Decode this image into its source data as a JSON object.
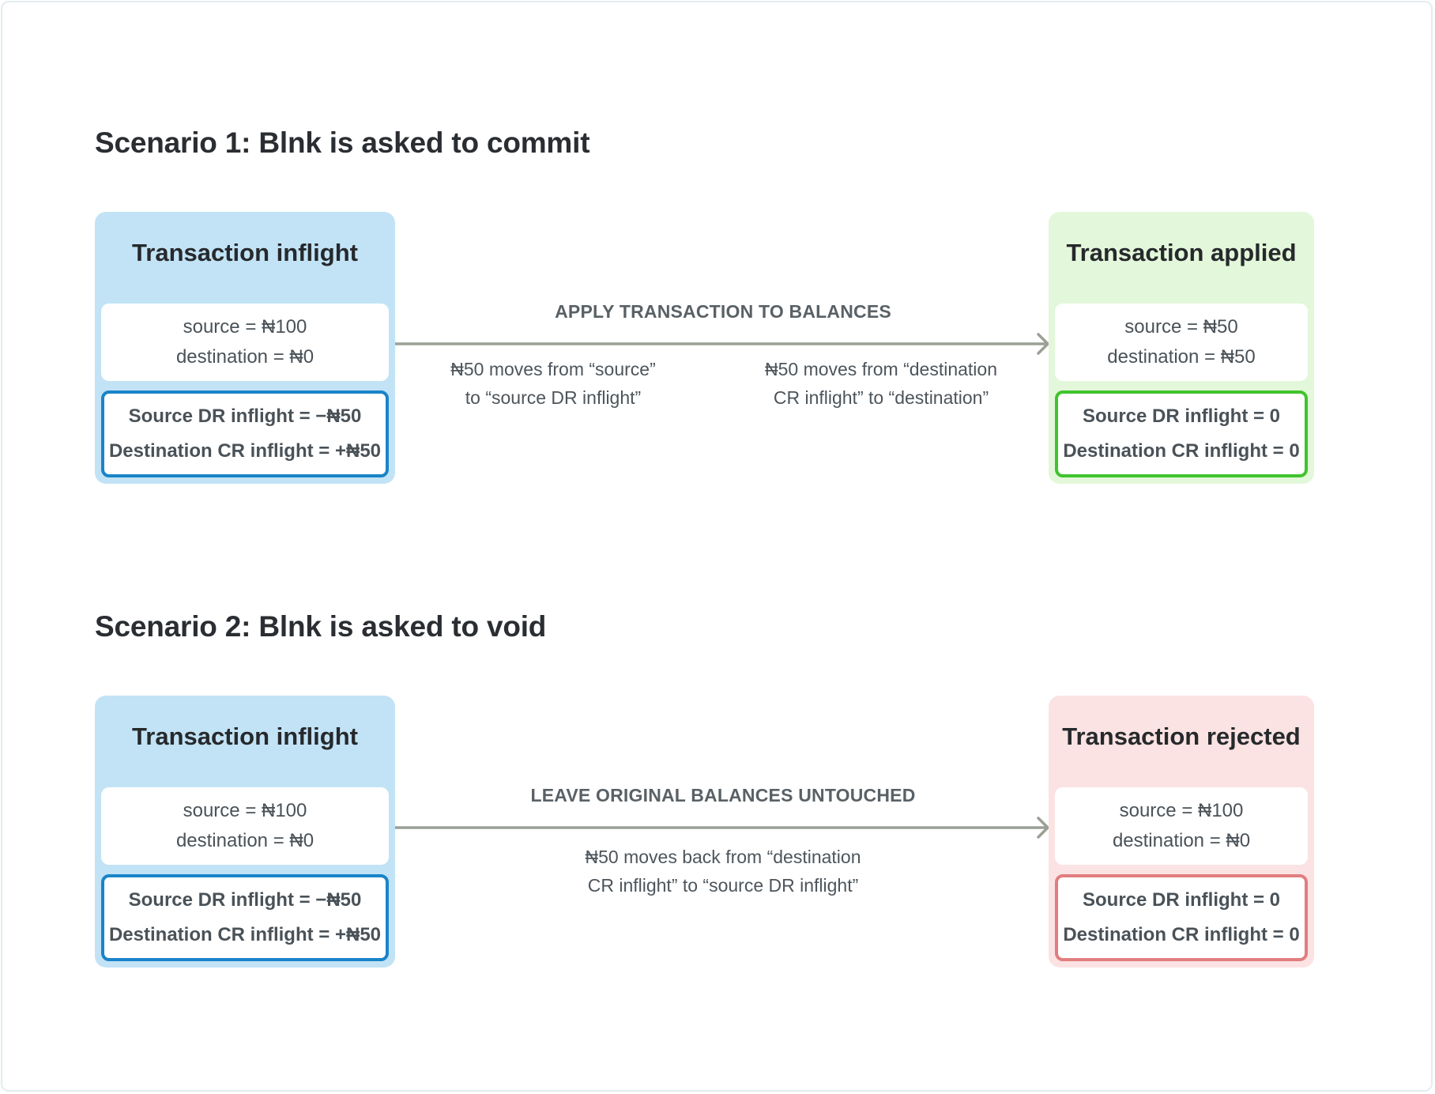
{
  "scenarios": [
    {
      "title": "Scenario 1: Blnk is asked to commit",
      "left_card": {
        "title": "Transaction inflight",
        "balances": [
          "source = ₦100",
          "destination = ₦0"
        ],
        "inflight": [
          "Source DR inflight = −₦50",
          "Destination CR inflight = +₦50"
        ]
      },
      "arrow_label": "APPLY TRANSACTION TO BALANCES",
      "notes": [
        {
          "lines": [
            "₦50 moves from “source”",
            "to “source DR inflight”"
          ]
        },
        {
          "lines": [
            "₦50 moves from “destination",
            "CR inflight” to “destination”"
          ]
        }
      ],
      "right_card": {
        "title": "Transaction applied",
        "balances": [
          "source = ₦50",
          "destination = ₦50"
        ],
        "inflight": [
          "Source DR inflight = 0",
          "Destination CR inflight = 0"
        ]
      }
    },
    {
      "title": "Scenario 2: Blnk is asked to void",
      "left_card": {
        "title": "Transaction inflight",
        "balances": [
          "source = ₦100",
          "destination = ₦0"
        ],
        "inflight": [
          "Source DR inflight = −₦50",
          "Destination CR inflight = +₦50"
        ]
      },
      "arrow_label": "LEAVE ORIGINAL BALANCES UNTOUCHED",
      "notes": [
        {
          "lines": [
            "₦50 moves back from “destination",
            "CR inflight” to “source DR inflight”"
          ]
        }
      ],
      "right_card": {
        "title": "Transaction rejected",
        "balances": [
          "source = ₦100",
          "destination = ₦0"
        ],
        "inflight": [
          "Source DR inflight = 0",
          "Destination CR inflight = 0"
        ]
      }
    }
  ],
  "colors": {
    "inflight_card_bg": "#c2e3f6",
    "inflight_border": "#1a84c8",
    "applied_card_bg": "#e3f7da",
    "applied_border": "#3fc42c",
    "rejected_card_bg": "#fbe3e3",
    "rejected_border": "#e27d7f",
    "arrow": "#9aa095"
  }
}
